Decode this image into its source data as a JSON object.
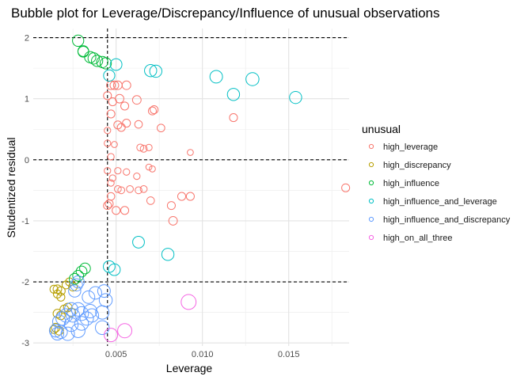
{
  "chart_data": {
    "type": "scatter",
    "title": "Bubble plot for Leverage/Discrepancy/Influence of unusual observations",
    "xlabel": "Leverage",
    "ylabel": "Studentized residual",
    "xlim": [
      0.0002,
      0.0185
    ],
    "ylim": [
      -3.05,
      2.15
    ],
    "x_ticks": [
      0.005,
      0.01,
      0.015
    ],
    "x_tick_labels": [
      "0.005",
      "0.010",
      "0.015"
    ],
    "y_ticks": [
      -3,
      -2,
      -1,
      0,
      1,
      2
    ],
    "y_tick_labels": [
      "-3",
      "-2",
      "-1",
      "0",
      "1",
      "2"
    ],
    "grid": true,
    "reference_lines": {
      "horizontal": [
        2,
        0,
        -2
      ],
      "vertical": [
        0.0045
      ],
      "style": "dashed"
    },
    "legend": {
      "title": "unusual",
      "position": "right",
      "entries": [
        {
          "label": "high_leverage",
          "color": "#F8766D"
        },
        {
          "label": "high_discrepancy",
          "color": "#B79F00"
        },
        {
          "label": "high_influence",
          "color": "#00BA38"
        },
        {
          "label": "high_influence_and_leverage",
          "color": "#00BFC4"
        },
        {
          "label": "high_influence_and_discrepancy",
          "color": "#619CFF"
        },
        {
          "label": "high_on_all_three",
          "color": "#F564E3"
        }
      ]
    },
    "size_encoding": "influence",
    "series": [
      {
        "name": "high_leverage",
        "color": "#F8766D",
        "points": [
          [
            0.0047,
            1.22,
            0.014
          ],
          [
            0.0049,
            1.22,
            0.014
          ],
          [
            0.0051,
            1.22,
            0.014
          ],
          [
            0.0056,
            1.22,
            0.014
          ],
          [
            0.0045,
            1.05,
            0.012
          ],
          [
            0.0048,
            0.95,
            0.012
          ],
          [
            0.0052,
            1.0,
            0.014
          ],
          [
            0.0055,
            0.88,
            0.012
          ],
          [
            0.0062,
            0.98,
            0.014
          ],
          [
            0.0071,
            0.8,
            0.012
          ],
          [
            0.0072,
            0.82,
            0.012
          ],
          [
            0.0118,
            0.69,
            0.012
          ],
          [
            0.0047,
            0.75,
            0.012
          ],
          [
            0.0051,
            0.57,
            0.012
          ],
          [
            0.0053,
            0.53,
            0.012
          ],
          [
            0.0056,
            0.6,
            0.012
          ],
          [
            0.0063,
            0.58,
            0.011
          ],
          [
            0.0076,
            0.52,
            0.011
          ],
          [
            0.0045,
            0.48,
            0.008
          ],
          [
            0.0064,
            0.2,
            0.009
          ],
          [
            0.0066,
            0.18,
            0.009
          ],
          [
            0.0069,
            0.2,
            0.008
          ],
          [
            0.0093,
            0.12,
            0.007
          ],
          [
            0.0045,
            0.27,
            0.008
          ],
          [
            0.0047,
            0.05,
            0.008
          ],
          [
            0.0049,
            0.25,
            0.007
          ],
          [
            0.0069,
            -0.12,
            0.007
          ],
          [
            0.0071,
            -0.15,
            0.007
          ],
          [
            0.0045,
            -0.18,
            0.008
          ],
          [
            0.0051,
            -0.18,
            0.008
          ],
          [
            0.0056,
            -0.2,
            0.008
          ],
          [
            0.0062,
            -0.27,
            0.008
          ],
          [
            0.0048,
            -0.3,
            0.008
          ],
          [
            0.0047,
            -0.38,
            0.008
          ],
          [
            0.0066,
            -0.48,
            0.009
          ],
          [
            0.0051,
            -0.48,
            0.009
          ],
          [
            0.0053,
            -0.5,
            0.009
          ],
          [
            0.0058,
            -0.48,
            0.009
          ],
          [
            0.0063,
            -0.5,
            0.009
          ],
          [
            0.0047,
            -0.6,
            0.011
          ],
          [
            0.007,
            -0.67,
            0.011
          ],
          [
            0.0046,
            -0.72,
            0.012
          ],
          [
            0.0045,
            -0.75,
            0.012
          ],
          [
            0.005,
            -0.83,
            0.012
          ],
          [
            0.0055,
            -0.83,
            0.012
          ],
          [
            0.0082,
            -0.75,
            0.012
          ],
          [
            0.0088,
            -0.6,
            0.012
          ],
          [
            0.0093,
            -0.6,
            0.012
          ],
          [
            0.0083,
            -1.0,
            0.014
          ],
          [
            0.0183,
            -0.46,
            0.012
          ]
        ]
      },
      {
        "name": "high_discrepancy",
        "color": "#B79F00",
        "points": [
          [
            0.0021,
            -2.05,
            0.012
          ],
          [
            0.0023,
            -2.0,
            0.012
          ],
          [
            0.0025,
            -2.08,
            0.014
          ],
          [
            0.0016,
            -2.12,
            0.014
          ],
          [
            0.0018,
            -2.15,
            0.014
          ],
          [
            0.0014,
            -2.12,
            0.012
          ],
          [
            0.0016,
            -2.2,
            0.012
          ],
          [
            0.0018,
            -2.25,
            0.012
          ],
          [
            0.002,
            -2.45,
            0.014
          ],
          [
            0.0022,
            -2.42,
            0.014
          ],
          [
            0.0024,
            -2.5,
            0.014
          ],
          [
            0.0016,
            -2.52,
            0.014
          ],
          [
            0.0018,
            -2.55,
            0.014
          ],
          [
            0.0015,
            -2.75,
            0.014
          ],
          [
            0.0017,
            -2.8,
            0.014
          ],
          [
            0.0014,
            -2.78,
            0.012
          ]
        ]
      },
      {
        "name": "high_influence",
        "color": "#00BA38",
        "points": [
          [
            0.0028,
            1.95,
            0.024
          ],
          [
            0.0031,
            1.78,
            0.022
          ],
          [
            0.0031,
            1.77,
            0.022
          ],
          [
            0.0035,
            1.68,
            0.024
          ],
          [
            0.0037,
            1.66,
            0.024
          ],
          [
            0.0039,
            1.62,
            0.024
          ],
          [
            0.0042,
            1.6,
            0.024
          ],
          [
            0.0044,
            1.58,
            0.024
          ],
          [
            0.0032,
            -1.78,
            0.022
          ],
          [
            0.003,
            -1.83,
            0.022
          ],
          [
            0.0028,
            -1.9,
            0.022
          ],
          [
            0.0026,
            -1.95,
            0.022
          ]
        ]
      },
      {
        "name": "high_influence_and_leverage",
        "color": "#00BFC4",
        "points": [
          [
            0.005,
            1.56,
            0.026
          ],
          [
            0.007,
            1.46,
            0.028
          ],
          [
            0.0073,
            1.45,
            0.028
          ],
          [
            0.0046,
            1.38,
            0.024
          ],
          [
            0.0108,
            1.36,
            0.03
          ],
          [
            0.0129,
            1.32,
            0.032
          ],
          [
            0.0118,
            1.07,
            0.028
          ],
          [
            0.0154,
            1.02,
            0.028
          ],
          [
            0.0063,
            -1.35,
            0.026
          ],
          [
            0.008,
            -1.55,
            0.028
          ],
          [
            0.0046,
            -1.75,
            0.026
          ],
          [
            0.0049,
            -1.8,
            0.026
          ]
        ]
      },
      {
        "name": "high_influence_and_discrepancy",
        "color": "#619CFF",
        "points": [
          [
            0.0028,
            -2.0,
            0.028
          ],
          [
            0.0027,
            -2.05,
            0.028
          ],
          [
            0.0043,
            -2.15,
            0.03
          ],
          [
            0.0038,
            -2.18,
            0.03
          ],
          [
            0.0026,
            -2.15,
            0.028
          ],
          [
            0.0044,
            -2.3,
            0.032
          ],
          [
            0.0034,
            -2.25,
            0.03
          ],
          [
            0.0042,
            -2.5,
            0.034
          ],
          [
            0.0035,
            -2.48,
            0.034
          ],
          [
            0.0028,
            -2.45,
            0.034
          ],
          [
            0.0024,
            -2.45,
            0.034
          ],
          [
            0.0021,
            -2.55,
            0.034
          ],
          [
            0.0019,
            -2.6,
            0.034
          ],
          [
            0.0017,
            -2.65,
            0.032
          ],
          [
            0.0024,
            -2.7,
            0.036
          ],
          [
            0.003,
            -2.68,
            0.036
          ],
          [
            0.0033,
            -2.6,
            0.034
          ],
          [
            0.0028,
            -2.8,
            0.036
          ],
          [
            0.0022,
            -2.85,
            0.034
          ],
          [
            0.0018,
            -2.82,
            0.032
          ],
          [
            0.0042,
            -2.75,
            0.036
          ],
          [
            0.0036,
            -2.55,
            0.034
          ],
          [
            0.003,
            -2.52,
            0.036
          ],
          [
            0.0025,
            -2.55,
            0.034
          ],
          [
            0.0015,
            -2.8,
            0.03
          ],
          [
            0.0016,
            -2.85,
            0.03
          ]
        ]
      },
      {
        "name": "high_on_all_three",
        "color": "#F564E3",
        "points": [
          [
            0.0092,
            -2.33,
            0.042
          ],
          [
            0.0055,
            -2.8,
            0.038
          ],
          [
            0.0047,
            -2.87,
            0.034
          ]
        ]
      }
    ]
  }
}
